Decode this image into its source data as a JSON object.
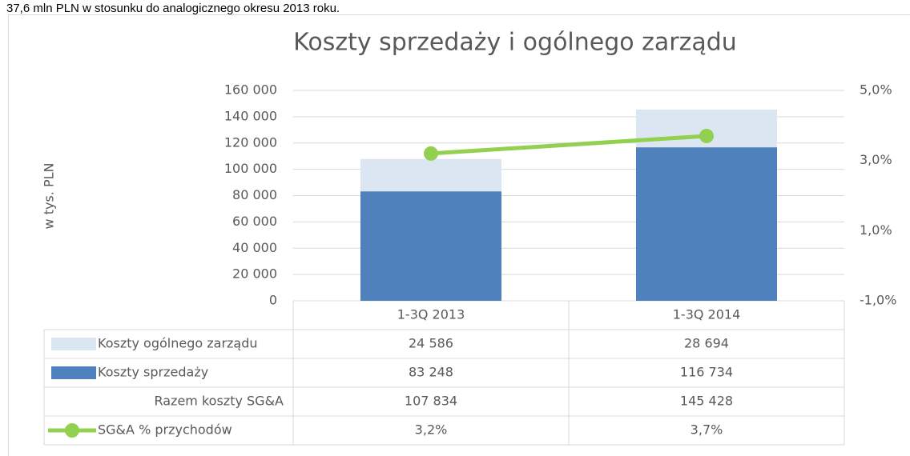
{
  "intro_text": "37,6 mln PLN w stosunku do analogicznego okresu 2013 roku.",
  "chart_data": {
    "type": "bar",
    "stacked": true,
    "title": "Koszty sprzedaży i ogólnego zarządu",
    "y_label": "w tys. PLN",
    "categories": [
      "1-3Q 2013",
      "1-3Q 2014"
    ],
    "series": [
      {
        "name": "Koszty ogólnego zarządu",
        "kind": "bar",
        "color": "#dce6f2",
        "values": [
          24586,
          28694
        ],
        "value_labels": [
          "24 586",
          "28 694"
        ]
      },
      {
        "name": "Koszty sprzedaży",
        "kind": "bar",
        "color": "#4f81bd",
        "values": [
          83248,
          116734
        ],
        "value_labels": [
          "83 248",
          "116 734"
        ]
      },
      {
        "name": "Razem koszty SG&A",
        "kind": "table",
        "values": [
          107834,
          145428
        ],
        "value_labels": [
          "107 834",
          "145 428"
        ]
      },
      {
        "name": "SG&A % przychodów",
        "kind": "line",
        "axis": "y2",
        "color": "#92d050",
        "values": [
          3.2,
          3.7
        ],
        "value_labels": [
          "3,2%",
          "3,7%"
        ]
      }
    ],
    "ylim": [
      0,
      160000
    ],
    "yticks": [
      0,
      {
        "value": 20000,
        "label": "20 000"
      },
      {
        "value": 40000,
        "label": "40 000"
      },
      {
        "value": 60000,
        "label": "60 000"
      },
      {
        "value": 80000,
        "label": "80 000"
      },
      {
        "value": 100000,
        "label": "100 000"
      },
      {
        "value": 120000,
        "label": "120 000"
      },
      {
        "value": 140000,
        "label": "140 000"
      },
      {
        "value": 160000,
        "label": "160 000"
      }
    ],
    "y2lim": [
      -1,
      5
    ],
    "y2ticks": [
      {
        "value": -1,
        "label": "-1,0%"
      },
      {
        "value": 1,
        "label": "1,0%"
      },
      {
        "value": 3,
        "label": "3,0%"
      },
      {
        "value": 5,
        "label": "5,0%"
      }
    ],
    "grid": true
  }
}
